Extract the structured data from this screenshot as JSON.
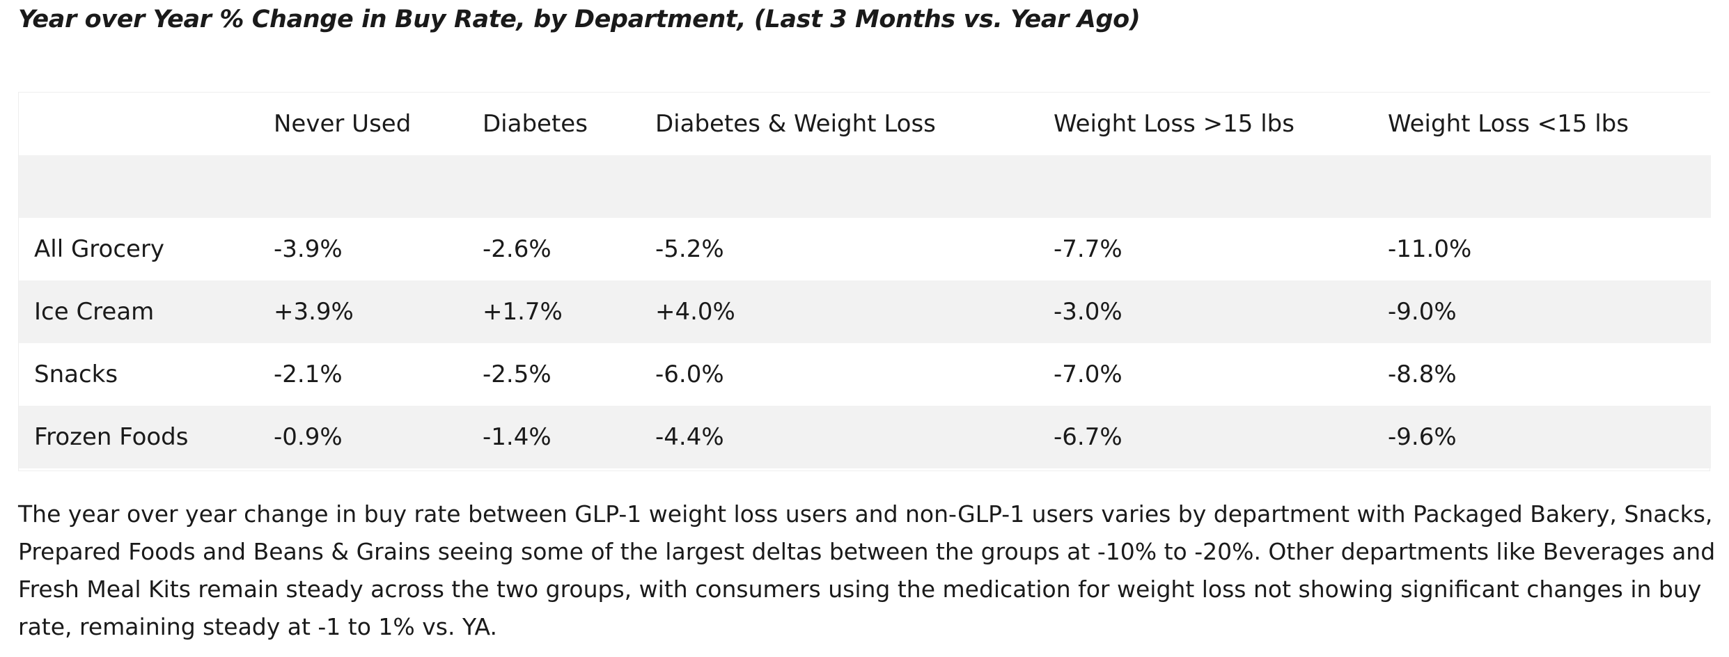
{
  "title": "Year over Year % Change in Buy Rate, by Department, (Last 3 Months vs. Year Ago)",
  "table": {
    "columns": [
      "",
      "Never Used",
      "Diabetes",
      "Diabetes & Weight Loss",
      "Weight Loss >15 lbs",
      "Weight Loss <15 lbs"
    ],
    "rows": [
      [
        "All Grocery",
        "-3.9%",
        "-2.6%",
        "-5.2%",
        "-7.7%",
        "-11.0%"
      ],
      [
        "Ice Cream",
        "+3.9%",
        "+1.7%",
        "+4.0%",
        "-3.0%",
        "-9.0%"
      ],
      [
        "Snacks",
        "-2.1%",
        "-2.5%",
        "-6.0%",
        "-7.0%",
        "-8.8%"
      ],
      [
        "Frozen Foods",
        "-0.9%",
        "-1.4%",
        "-4.4%",
        "-6.7%",
        "-9.6%"
      ]
    ]
  },
  "description": "The year over year change in buy rate between GLP-1 weight loss users and non-GLP-1 users varies by department with Packaged Bakery, Snacks, Prepared Foods and Beans & Grains seeing some of the largest deltas between the groups at -10% to -20%. Other departments like Beverages and Fresh Meal Kits remain steady across the two groups, with consumers using the medication for weight loss not showing significant changes in buy rate, remaining steady at -1 to 1% vs. YA.",
  "colors": {
    "text": "#1a1a1a",
    "stripe": "#f2f2f2",
    "background": "#ffffff"
  }
}
